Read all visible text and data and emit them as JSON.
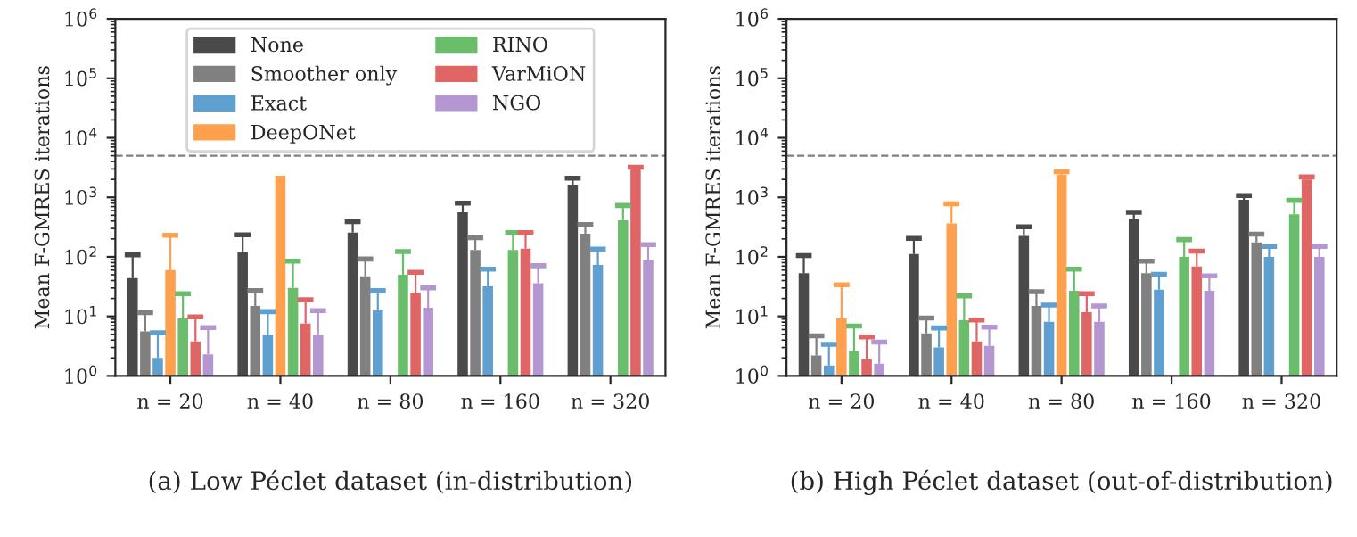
{
  "chart_data": [
    {
      "type": "bar",
      "title": "(a) Low Péclet dataset (in-distribution)",
      "ylabel": "Mean F-GMRES iterations",
      "log": true,
      "categories": [
        "n = 20",
        "n = 40",
        "n = 80",
        "n = 160",
        "n = 320"
      ],
      "ylim": [
        1,
        1000000
      ],
      "yticks": [
        {
          "value": 1,
          "label": "10$^{0}$"
        },
        {
          "value": 10,
          "label": "10$^{1}$"
        },
        {
          "value": 100,
          "label": "10$^{2}$"
        },
        {
          "value": 1000,
          "label": "10$^{3}$"
        },
        {
          "value": 10000,
          "label": "10$^{4}$"
        },
        {
          "value": 100000,
          "label": "10$^{5}$"
        },
        {
          "value": 1000000,
          "label": "10$^{6}$"
        }
      ],
      "ref_lines": [
        {
          "axis": "y",
          "value": 5000,
          "color": "#808080",
          "line_style": "dashed"
        }
      ],
      "legend": "top",
      "series": [
        {
          "name": "None",
          "color": "#4a4a4a",
          "values": [
            44,
            120,
            255,
            560,
            1630
          ],
          "errors": [
            [
              44,
              108
            ],
            [
              120,
              235
            ],
            [
              255,
              390
            ],
            [
              560,
              800
            ],
            [
              1630,
              2100
            ]
          ]
        },
        {
          "name": "Smoother only",
          "color": "#808080",
          "values": [
            5.6,
            15,
            47,
            130,
            245
          ],
          "errors": [
            [
              5.6,
              11.6
            ],
            [
              15,
              27
            ],
            [
              47,
              92
            ],
            [
              130,
              210
            ],
            [
              245,
              350
            ]
          ]
        },
        {
          "name": "Exact",
          "color": "#5fa0d0",
          "values": [
            2.0,
            4.9,
            12.6,
            32,
            73
          ],
          "errors": [
            [
              2.0,
              5.3
            ],
            [
              4.9,
              12
            ],
            [
              12.6,
              27
            ],
            [
              32,
              62
            ],
            [
              73,
              135
            ]
          ]
        },
        {
          "name": "DeepONet",
          "color": "#ffa04f",
          "values": [
            60,
            2300,
            null,
            null,
            null
          ],
          "errors": [
            [
              60,
              230
            ],
            null,
            null,
            null,
            null
          ]
        },
        {
          "name": "RINO",
          "color": "#6abd6a",
          "values": [
            9.2,
            30,
            50,
            130,
            410
          ],
          "errors": [
            [
              9.2,
              24
            ],
            [
              30,
              85
            ],
            [
              50,
              123
            ],
            [
              130,
              255
            ],
            [
              410,
              730
            ]
          ]
        },
        {
          "name": "VarMiON",
          "color": "#e06666",
          "values": [
            3.8,
            7.6,
            25,
            137,
            3100
          ],
          "errors": [
            [
              3.8,
              9.8
            ],
            [
              7.6,
              19
            ],
            [
              25,
              55
            ],
            [
              137,
              255
            ],
            [
              3100,
              3200
            ]
          ]
        },
        {
          "name": "NGO",
          "color": "#b497d0",
          "values": [
            2.3,
            4.9,
            14,
            36,
            88
          ],
          "errors": [
            [
              2.3,
              6.5
            ],
            [
              4.9,
              12.5
            ],
            [
              14,
              30
            ],
            [
              36,
              71
            ],
            [
              88,
              160
            ]
          ]
        }
      ]
    },
    {
      "type": "bar",
      "title": "(b) High Péclet dataset (out-of-distribution)",
      "ylabel": "Mean F-GMRES iterations",
      "log": true,
      "categories": [
        "n = 20",
        "n = 40",
        "n = 80",
        "n = 160",
        "n = 320"
      ],
      "ylim": [
        1,
        1000000
      ],
      "yticks": [
        {
          "value": 1,
          "label": "10$^{0}$"
        },
        {
          "value": 10,
          "label": "10$^{1}$"
        },
        {
          "value": 100,
          "label": "10$^{2}$"
        },
        {
          "value": 1000,
          "label": "10$^{3}$"
        },
        {
          "value": 10000,
          "label": "10$^{4}$"
        },
        {
          "value": 100000,
          "label": "10$^{5}$"
        },
        {
          "value": 1000000,
          "label": "10$^{6}$"
        }
      ],
      "ref_lines": [
        {
          "axis": "y",
          "value": 5000,
          "color": "#808080",
          "line_style": "dashed"
        }
      ],
      "series": [
        {
          "color": "#4a4a4a",
          "values": [
            53,
            112,
            225,
            440,
            910
          ],
          "errors": [
            [
              53,
              105
            ],
            [
              112,
              205
            ],
            [
              225,
              320
            ],
            [
              440,
              560
            ],
            [
              910,
              1070
            ]
          ]
        },
        {
          "color": "#808080",
          "values": [
            2.2,
            5.2,
            15,
            53,
            175
          ],
          "errors": [
            [
              2.2,
              4.7
            ],
            [
              5.2,
              9.4
            ],
            [
              15,
              26
            ],
            [
              53,
              85
            ],
            [
              175,
              240
            ]
          ]
        },
        {
          "color": "#5fa0d0",
          "values": [
            1.5,
            3.0,
            8.1,
            28,
            100
          ],
          "errors": [
            [
              1.5,
              3.4
            ],
            [
              3.0,
              6.4
            ],
            [
              8.1,
              15.5
            ],
            [
              28,
              51
            ],
            [
              100,
              150
            ]
          ]
        },
        {
          "color": "#ffa04f",
          "values": [
            9.2,
            365,
            2400,
            null,
            null
          ],
          "errors": [
            [
              9.2,
              34
            ],
            [
              365,
              780
            ],
            [
              2400,
              2700
            ],
            null,
            null
          ]
        },
        {
          "color": "#6abd6a",
          "values": [
            2.6,
            8.6,
            27,
            100,
            520
          ],
          "errors": [
            [
              2.6,
              6.9
            ],
            [
              8.6,
              22
            ],
            [
              27,
              62
            ],
            [
              100,
              195
            ],
            [
              520,
              890
            ]
          ]
        },
        {
          "color": "#e06666",
          "values": [
            1.9,
            3.8,
            11.8,
            69,
            2000
          ],
          "errors": [
            [
              1.9,
              4.5
            ],
            [
              3.8,
              8.7
            ],
            [
              11.8,
              24
            ],
            [
              69,
              125
            ],
            [
              2000,
              2200
            ]
          ]
        },
        {
          "color": "#b497d0",
          "values": [
            1.6,
            3.2,
            8.1,
            27,
            100
          ],
          "errors": [
            [
              1.6,
              3.7
            ],
            [
              3.2,
              6.6
            ],
            [
              8.1,
              15
            ],
            [
              27,
              48
            ],
            [
              100,
              150
            ]
          ]
        }
      ]
    }
  ]
}
